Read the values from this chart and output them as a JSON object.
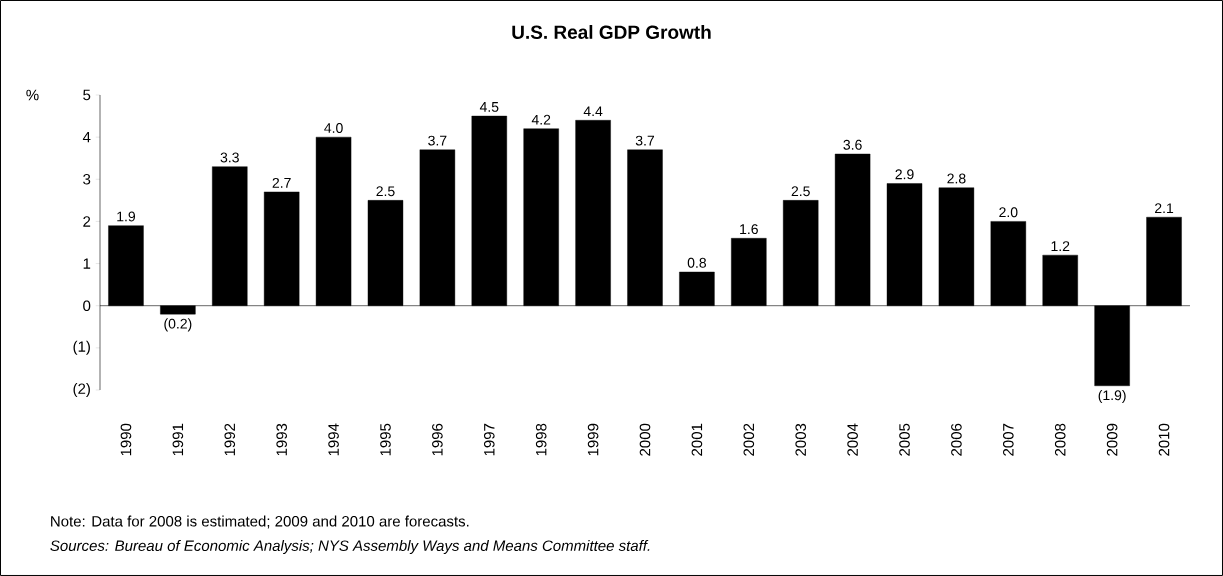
{
  "chart_data": {
    "type": "bar",
    "title": "U.S. Real GDP Growth",
    "ylabel": "%",
    "categories": [
      "1990",
      "1991",
      "1992",
      "1993",
      "1994",
      "1995",
      "1996",
      "1997",
      "1998",
      "1999",
      "2000",
      "2001",
      "2002",
      "2003",
      "2004",
      "2005",
      "2006",
      "2007",
      "2008",
      "2009",
      "2010"
    ],
    "values": [
      1.9,
      -0.2,
      3.3,
      2.7,
      4.0,
      2.5,
      3.7,
      4.5,
      4.2,
      4.4,
      3.7,
      0.8,
      1.6,
      2.5,
      3.6,
      2.9,
      2.8,
      2.0,
      1.2,
      -1.9,
      2.1
    ],
    "value_labels": [
      "1.9",
      "(0.2)",
      "3.3",
      "2.7",
      "4.0",
      "2.5",
      "3.7",
      "4.5",
      "4.2",
      "4.4",
      "3.7",
      "0.8",
      "1.6",
      "2.5",
      "3.6",
      "2.9",
      "2.8",
      "2.0",
      "1.2",
      "(1.9)",
      "2.1"
    ],
    "color": "#000000",
    "ylim": [
      -2,
      5
    ],
    "yticks": [
      {
        "value": -2,
        "label": "(2)"
      },
      {
        "value": -1,
        "label": "(1)"
      },
      0,
      1,
      2,
      3,
      4,
      5
    ],
    "annotations": [
      "Note: Data for 2008 is estimated; 2009 and 2010 are forecasts.",
      "Sources: Bureau of Economic Analysis; NYS Assembly Ways and Means Committee staff."
    ]
  }
}
